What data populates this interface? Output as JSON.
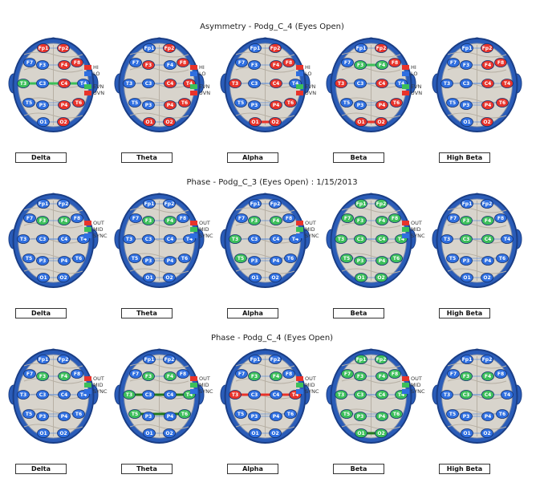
{
  "colors": {
    "red": "#e8332a",
    "blue": "#2f6fe0",
    "green": "#3cbf5a",
    "outline": "#1a3e86",
    "darkgreen": "#1f7a1f"
  },
  "sections": [
    {
      "title": "Asymmetry - Podg_C_4 (Eyes Open)",
      "legend": [
        {
          "label": "HI",
          "color": "#e8332a"
        },
        {
          "label": "LO",
          "color": "#2f6fe0"
        },
        {
          "label": "EVN",
          "color": "#3cbf5a"
        },
        {
          "label": "UVN",
          "color": "#e8332a"
        }
      ],
      "maps": [
        {
          "band": "Delta",
          "electrodes": {
            "Fp1": "r",
            "Fp2": "r",
            "F7": "b",
            "F8": "r",
            "F3": "b",
            "F4": "r",
            "T3": "g",
            "T4": "b",
            "C3": "b",
            "C4": "r",
            "T5": "b",
            "T6": "r",
            "P3": "b",
            "P4": "r",
            "O1": "b",
            "O2": "r"
          },
          "links": [
            [
              "T3",
              "T4",
              "g"
            ]
          ]
        },
        {
          "band": "Theta",
          "electrodes": {
            "Fp1": "b",
            "Fp2": "r",
            "F7": "b",
            "F8": "r",
            "F3": "r",
            "F4": "b",
            "T3": "b",
            "T4": "r",
            "C3": "b",
            "C4": "r",
            "T5": "b",
            "T6": "r",
            "P3": "b",
            "P4": "r",
            "O1": "r",
            "O2": "r"
          },
          "links": []
        },
        {
          "band": "Alpha",
          "electrodes": {
            "Fp1": "b",
            "Fp2": "r",
            "F7": "b",
            "F8": "r",
            "F3": "b",
            "F4": "r",
            "T3": "r",
            "T4": "b",
            "C3": "b",
            "C4": "r",
            "T5": "b",
            "T6": "r",
            "P3": "b",
            "P4": "r",
            "O1": "r",
            "O2": "r"
          },
          "links": [
            [
              "O1",
              "O2",
              "r"
            ]
          ]
        },
        {
          "band": "Beta",
          "electrodes": {
            "Fp1": "b",
            "Fp2": "r",
            "F7": "b",
            "F8": "r",
            "F3": "g",
            "F4": "g",
            "T3": "r",
            "T4": "b",
            "C3": "b",
            "C4": "r",
            "T5": "b",
            "T6": "r",
            "P3": "b",
            "P4": "r",
            "O1": "r",
            "O2": "r"
          },
          "links": [
            [
              "F3",
              "F4",
              "g"
            ],
            [
              "O1",
              "O2",
              "r"
            ]
          ]
        },
        {
          "band": "High Beta",
          "electrodes": {
            "Fp1": "b",
            "Fp2": "r",
            "F7": "b",
            "F8": "r",
            "F3": "b",
            "F4": "r",
            "T3": "b",
            "T4": "r",
            "C3": "b",
            "C4": "r",
            "T5": "b",
            "T6": "r",
            "P3": "b",
            "P4": "r",
            "O1": "b",
            "O2": "r"
          },
          "links": []
        }
      ]
    },
    {
      "title": "Phase - Podg_C_3 (Eyes Open) : 1/15/2013",
      "legend": [
        {
          "label": "OUT",
          "color": "#e8332a"
        },
        {
          "label": "MID",
          "color": "#3cbf5a"
        },
        {
          "label": "SYNC",
          "color": "#2f6fe0"
        }
      ],
      "maps": [
        {
          "band": "Delta",
          "electrodes": {
            "Fp1": "b",
            "Fp2": "b",
            "F7": "b",
            "F8": "b",
            "F3": "g",
            "F4": "g",
            "T3": "b",
            "T4": "b",
            "C3": "b",
            "C4": "b",
            "T5": "b",
            "T6": "b",
            "P3": "b",
            "P4": "b",
            "O1": "b",
            "O2": "b"
          },
          "links": []
        },
        {
          "band": "Theta",
          "electrodes": {
            "Fp1": "b",
            "Fp2": "b",
            "F7": "b",
            "F8": "b",
            "F3": "g",
            "F4": "g",
            "T3": "b",
            "T4": "b",
            "C3": "b",
            "C4": "b",
            "T5": "b",
            "T6": "b",
            "P3": "b",
            "P4": "b",
            "O1": "b",
            "O2": "b"
          },
          "links": []
        },
        {
          "band": "Alpha",
          "electrodes": {
            "Fp1": "b",
            "Fp2": "b",
            "F7": "b",
            "F8": "b",
            "F3": "g",
            "F4": "g",
            "T3": "g",
            "T4": "b",
            "C3": "b",
            "C4": "b",
            "T5": "g",
            "T6": "b",
            "P3": "b",
            "P4": "b",
            "O1": "b",
            "O2": "b"
          },
          "links": []
        },
        {
          "band": "Beta",
          "electrodes": {
            "Fp1": "g",
            "Fp2": "g",
            "F7": "g",
            "F8": "g",
            "F3": "g",
            "F4": "g",
            "T3": "g",
            "T4": "g",
            "C3": "g",
            "C4": "g",
            "T5": "g",
            "T6": "g",
            "P3": "g",
            "P4": "g",
            "O1": "g",
            "O2": "g"
          },
          "links": []
        },
        {
          "band": "High Beta",
          "electrodes": {
            "Fp1": "b",
            "Fp2": "b",
            "F7": "b",
            "F8": "b",
            "F3": "g",
            "F4": "g",
            "T3": "b",
            "T4": "b",
            "C3": "g",
            "C4": "g",
            "T5": "b",
            "T6": "b",
            "P3": "b",
            "P4": "b",
            "O1": "b",
            "O2": "b"
          },
          "links": []
        }
      ]
    },
    {
      "title": "Phase - Podg_C_4 (Eyes Open)",
      "legend": [
        {
          "label": "OUT",
          "color": "#e8332a"
        },
        {
          "label": "MID",
          "color": "#3cbf5a"
        },
        {
          "label": "SYNC",
          "color": "#2f6fe0"
        }
      ],
      "maps": [
        {
          "band": "Delta",
          "electrodes": {
            "Fp1": "b",
            "Fp2": "b",
            "F7": "b",
            "F8": "b",
            "F3": "g",
            "F4": "g",
            "T3": "b",
            "T4": "b",
            "C3": "b",
            "C4": "b",
            "T5": "b",
            "T6": "b",
            "P3": "b",
            "P4": "b",
            "O1": "b",
            "O2": "b"
          },
          "links": []
        },
        {
          "band": "Theta",
          "electrodes": {
            "Fp1": "b",
            "Fp2": "b",
            "F7": "b",
            "F8": "b",
            "F3": "g",
            "F4": "g",
            "T3": "g",
            "T4": "g",
            "C3": "b",
            "C4": "b",
            "T5": "g",
            "T6": "g",
            "P3": "b",
            "P4": "b",
            "O1": "b",
            "O2": "b"
          },
          "links": [
            [
              "T3",
              "T4",
              "dg"
            ],
            [
              "T5",
              "T6",
              "dg"
            ]
          ]
        },
        {
          "band": "Alpha",
          "electrodes": {
            "Fp1": "b",
            "Fp2": "b",
            "F7": "b",
            "F8": "b",
            "F3": "g",
            "F4": "g",
            "T3": "r",
            "T4": "r",
            "C3": "b",
            "C4": "b",
            "T5": "b",
            "T6": "b",
            "P3": "b",
            "P4": "b",
            "O1": "b",
            "O2": "b"
          },
          "links": [
            [
              "T3",
              "T4",
              "r"
            ]
          ]
        },
        {
          "band": "Beta",
          "electrodes": {
            "Fp1": "g",
            "Fp2": "g",
            "F7": "g",
            "F8": "g",
            "F3": "g",
            "F4": "g",
            "T3": "g",
            "T4": "g",
            "C3": "g",
            "C4": "g",
            "T5": "g",
            "T6": "g",
            "P3": "g",
            "P4": "g",
            "O1": "g",
            "O2": "g"
          },
          "links": [
            [
              "O1",
              "O2",
              "dg"
            ]
          ]
        },
        {
          "band": "High Beta",
          "electrodes": {
            "Fp1": "b",
            "Fp2": "b",
            "F7": "b",
            "F8": "b",
            "F3": "g",
            "F4": "g",
            "T3": "b",
            "T4": "b",
            "C3": "g",
            "C4": "g",
            "T5": "b",
            "T6": "b",
            "P3": "b",
            "P4": "b",
            "O1": "b",
            "O2": "b"
          },
          "links": []
        }
      ]
    }
  ]
}
